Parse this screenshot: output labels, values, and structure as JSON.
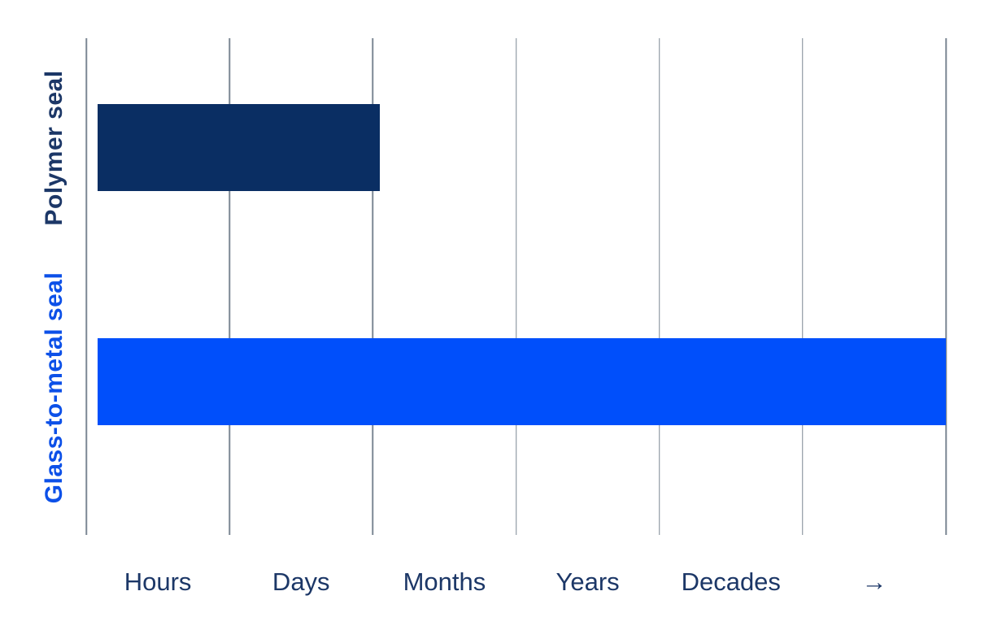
{
  "chart_data": {
    "type": "bar",
    "orientation": "horizontal",
    "title": "",
    "categories": [
      "Polymer seal",
      "Glass-to-metal seal"
    ],
    "x_axis": {
      "tick_labels": [
        "Hours",
        "Days",
        "Months",
        "Years",
        "Decades",
        "→"
      ],
      "gridline_count": 7,
      "axis_units_range": [
        0,
        6
      ],
      "tick_label_position": "between-gridlines"
    },
    "y_axis": {
      "label_rotation_deg": -90
    },
    "bars": [
      {
        "label": "Polymer seal",
        "start": 0.079,
        "end": 2.05,
        "color": "#0a2e63",
        "label_color": "#1c3767"
      },
      {
        "label": "Glass-to-metal seal",
        "start": 0.079,
        "end": 6.0,
        "color": "#004ffb",
        "label_color": "#0c50e8"
      }
    ],
    "grid": true,
    "legend": null
  },
  "colors": {
    "background": "#ffffff",
    "gridline": "#7c8794",
    "tick_label": "#1c3767"
  }
}
